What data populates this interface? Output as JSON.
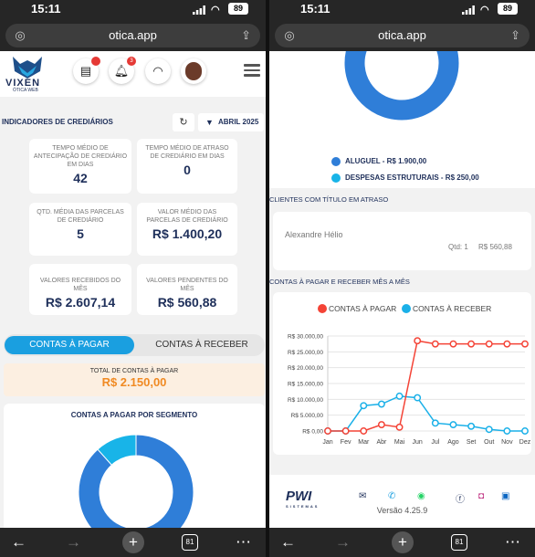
{
  "status": {
    "time": "15:11",
    "battery": "89"
  },
  "browser": {
    "url": "otica.app",
    "tabs_count": "81"
  },
  "left": {
    "logo": {
      "name": "VIXEN",
      "sub": "ÓTICA WEB"
    },
    "header_icons": [
      "cash-register-icon",
      "bell-icon",
      "support-icon",
      "avatar"
    ],
    "bell_badge": "3",
    "section_title": "INDICADORES DE CREDIÁRIOS",
    "month_button": "ABRIL 2025",
    "cards": [
      {
        "label": "TEMPO MÉDIO DE ANTECIPAÇÃO DE CREDIÁRIO EM DIAS",
        "value": "42"
      },
      {
        "label": "TEMPO MÉDIO DE ATRASO DE CREDIÁRIO EM DIAS",
        "value": "0"
      },
      {
        "label": "QTD. MÉDIA DAS PARCELAS DE CREDIÁRIO",
        "value": "5"
      },
      {
        "label": "VALOR MÉDIO DAS PARCELAS DE CREDIÁRIO",
        "value": "R$ 1.400,20"
      },
      {
        "label": "VALORES RECEBIDOS DO MÊS",
        "value": "R$ 2.607,14"
      },
      {
        "label": "VALORES PENDENTES DO MÊS",
        "value": "R$ 560,88"
      }
    ],
    "tabs": [
      "CONTAS À PAGAR",
      "CONTAS À RECEBER"
    ],
    "total_label": "TOTAL DE CONTAS À PAGAR",
    "total_value": "R$ 2.150,00",
    "segment_title": "CONTAS A PAGAR POR SEGMENTO"
  },
  "right": {
    "legend": [
      {
        "label": "ALUGUEL - R$ 1.900,00",
        "color": "#2f7ed8"
      },
      {
        "label": "DESPESAS ESTRUTURAIS - R$ 250,00",
        "color": "#18b4e8"
      }
    ],
    "late_title": "CLIENTES COM TÍTULO EM ATRASO",
    "client": {
      "name": "Alexandre Hélio",
      "qtd": "Qtd: 1",
      "value": "R$ 560,88"
    },
    "chart_title": "CONTAS À PAGAR E RECEBER MÊS A MÊS",
    "footer_brand": "PWI",
    "footer_brand_sub": "SISTEMAS",
    "footer_icons": [
      "email-icon",
      "phone-icon",
      "whatsapp-icon",
      "facebook-icon",
      "instagram-icon",
      "linkedin-icon"
    ],
    "version": "Versão 4.25.9"
  },
  "chart_data": [
    {
      "type": "pie",
      "title": "CONTAS A PAGAR POR SEGMENTO",
      "labels": [
        "ALUGUEL",
        "DESPESAS ESTRUTURAIS"
      ],
      "values": [
        1900,
        250
      ],
      "colors": [
        "#2f7ed8",
        "#18b4e8"
      ]
    },
    {
      "type": "line",
      "title": "",
      "categories": [
        "Jan",
        "Fev",
        "Mar",
        "Abr",
        "Mai",
        "Jun",
        "Jul",
        "Ago",
        "Set",
        "Out",
        "Nov",
        "Dez"
      ],
      "series": [
        {
          "name": "CONTAS À PAGAR",
          "color": "#f44336",
          "values": [
            0,
            0,
            0,
            2000,
            1200,
            28500,
            27500,
            27500,
            27500,
            27500,
            27500,
            27500
          ]
        },
        {
          "name": "CONTAS À RECEBER",
          "color": "#1ab0e8",
          "values": [
            0,
            0,
            8000,
            8500,
            11000,
            10500,
            2500,
            2000,
            1500,
            500,
            0,
            0
          ]
        }
      ],
      "yticks": [
        "R$ 0,00",
        "R$ 5.000,00",
        "R$ 10.000,00",
        "R$ 15.000,00",
        "R$ 20.000,00",
        "R$ 25.000,00",
        "R$ 30.000,00"
      ],
      "ylim": [
        0,
        30000
      ],
      "legend": "top"
    }
  ]
}
